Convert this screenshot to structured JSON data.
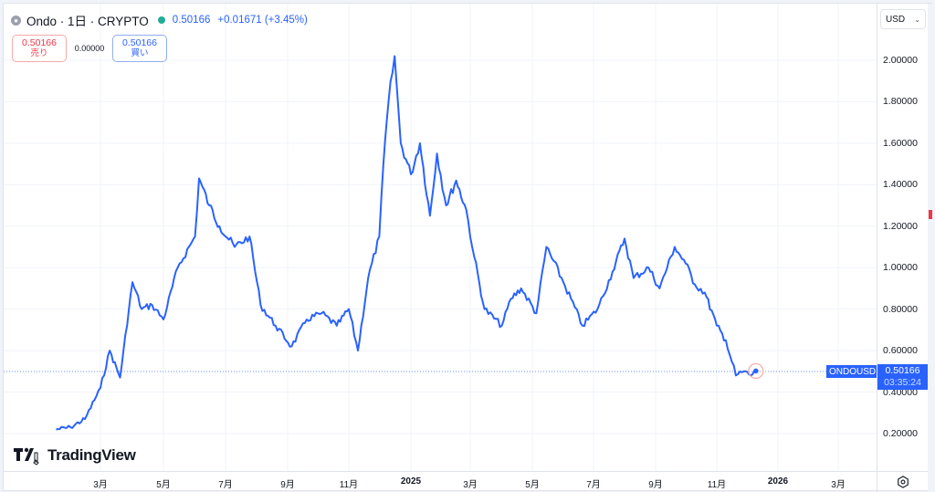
{
  "header": {
    "symbol_icon": "coin-icon",
    "title": "Ondo · 1日 · CRYPTO",
    "live_indicator_color": "#22ab94",
    "last_price": "0.50166",
    "change": "+0.01671 (+3.45%)"
  },
  "trade": {
    "sell_price": "0.50166",
    "sell_label": "売り",
    "spread": "0.00000",
    "buy_price": "0.50166",
    "buy_label": "買い"
  },
  "price_axis": {
    "currency": "USD",
    "ticks": [
      "2.00000",
      "1.80000",
      "1.60000",
      "1.40000",
      "1.20000",
      "1.00000",
      "0.80000",
      "0.60000",
      "0.40000",
      "0.20000"
    ]
  },
  "time_axis": {
    "ticks": [
      "3月",
      "5月",
      "7月",
      "9月",
      "11月",
      "2025",
      "3月",
      "5月",
      "7月",
      "9月",
      "11月",
      "2026",
      "3月"
    ],
    "bold": [
      "2025",
      "2026"
    ]
  },
  "last_value": {
    "symbol": "ONDOUSD",
    "price": "0.50166",
    "countdown": "03:35:24"
  },
  "branding": {
    "logo_text": "TradingView"
  },
  "colors": {
    "line": "#2962ff",
    "up": "#22ab94",
    "down": "#f23645",
    "accent": "#2962ff"
  },
  "chart_data": {
    "type": "line",
    "title": "Ondo · 1日 · CRYPTO (ONDOUSD)",
    "xlabel": "",
    "ylabel": "USD",
    "ylim": [
      0.1,
      2.1
    ],
    "grid": true,
    "legend_position": "none",
    "x": [
      "2024-01-18",
      "2024-02-01",
      "2024-02-15",
      "2024-03-01",
      "2024-03-10",
      "2024-03-20",
      "2024-04-01",
      "2024-04-10",
      "2024-04-20",
      "2024-05-01",
      "2024-05-15",
      "2024-06-01",
      "2024-06-05",
      "2024-06-15",
      "2024-06-25",
      "2024-07-10",
      "2024-07-25",
      "2024-08-05",
      "2024-08-20",
      "2024-09-05",
      "2024-09-20",
      "2024-10-05",
      "2024-10-20",
      "2024-11-01",
      "2024-11-10",
      "2024-11-20",
      "2024-12-01",
      "2024-12-05",
      "2024-12-10",
      "2024-12-16",
      "2024-12-22",
      "2025-01-01",
      "2025-01-10",
      "2025-01-20",
      "2025-01-27",
      "2025-02-05",
      "2025-02-15",
      "2025-02-25",
      "2025-03-05",
      "2025-03-15",
      "2025-04-01",
      "2025-04-10",
      "2025-04-20",
      "2025-05-05",
      "2025-05-15",
      "2025-06-01",
      "2025-06-20",
      "2025-07-05",
      "2025-07-20",
      "2025-08-01",
      "2025-08-10",
      "2025-08-25",
      "2025-09-05",
      "2025-09-20",
      "2025-10-01",
      "2025-10-10",
      "2025-10-20",
      "2025-11-01",
      "2025-11-10",
      "2025-11-20",
      "2025-11-28",
      "2025-12-05",
      "2025-12-10"
    ],
    "series": [
      {
        "name": "ONDOUSD",
        "values": [
          0.22,
          0.23,
          0.27,
          0.42,
          0.6,
          0.47,
          0.93,
          0.8,
          0.82,
          0.75,
          1.0,
          1.15,
          1.43,
          1.3,
          1.2,
          1.1,
          1.15,
          0.82,
          0.72,
          0.62,
          0.75,
          0.78,
          0.72,
          0.8,
          0.6,
          0.95,
          1.15,
          1.5,
          1.8,
          2.02,
          1.6,
          1.45,
          1.6,
          1.25,
          1.55,
          1.3,
          1.42,
          1.28,
          1.05,
          0.8,
          0.72,
          0.85,
          0.9,
          0.78,
          1.1,
          0.93,
          0.72,
          0.8,
          0.98,
          1.14,
          0.95,
          1.0,
          0.9,
          1.1,
          1.02,
          0.92,
          0.88,
          0.72,
          0.65,
          0.48,
          0.5,
          0.48,
          0.50166
        ]
      }
    ],
    "last_price": 0.50166
  }
}
